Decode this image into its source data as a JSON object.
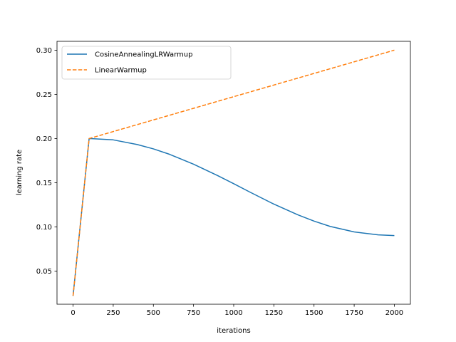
{
  "chart_data": {
    "type": "line",
    "xlabel": "iterations",
    "ylabel": "learning rate",
    "xlim": [
      -100,
      2100
    ],
    "ylim": [
      0.0125,
      0.31
    ],
    "xticks": [
      0,
      250,
      500,
      750,
      1000,
      1250,
      1500,
      1750,
      2000
    ],
    "xtick_labels": [
      "0",
      "250",
      "500",
      "750",
      "1000",
      "1250",
      "1500",
      "1750",
      "2000"
    ],
    "yticks": [
      0.05,
      0.1,
      0.15,
      0.2,
      0.25,
      0.3
    ],
    "ytick_labels": [
      "0.05",
      "0.10",
      "0.15",
      "0.20",
      "0.25",
      "0.30"
    ],
    "grid": false,
    "legend_position": "top-left",
    "series": [
      {
        "name": "CosineAnnealingLRWarmup",
        "color": "#1f77b4",
        "style": "solid",
        "x": [
          0,
          100,
          250,
          400,
          500,
          600,
          750,
          900,
          1000,
          1100,
          1250,
          1400,
          1500,
          1600,
          1750,
          1900,
          2000
        ],
        "y": [
          0.022,
          0.2,
          0.1985,
          0.1932,
          0.1883,
          0.1822,
          0.171,
          0.1581,
          0.1489,
          0.1395,
          0.1258,
          0.1136,
          0.1066,
          0.1006,
          0.0943,
          0.091,
          0.0902
        ]
      },
      {
        "name": "LinearWarmup",
        "color": "#ff7f0e",
        "style": "dashed",
        "x": [
          0,
          100,
          2000
        ],
        "y": [
          0.022,
          0.2,
          0.3
        ]
      }
    ]
  }
}
